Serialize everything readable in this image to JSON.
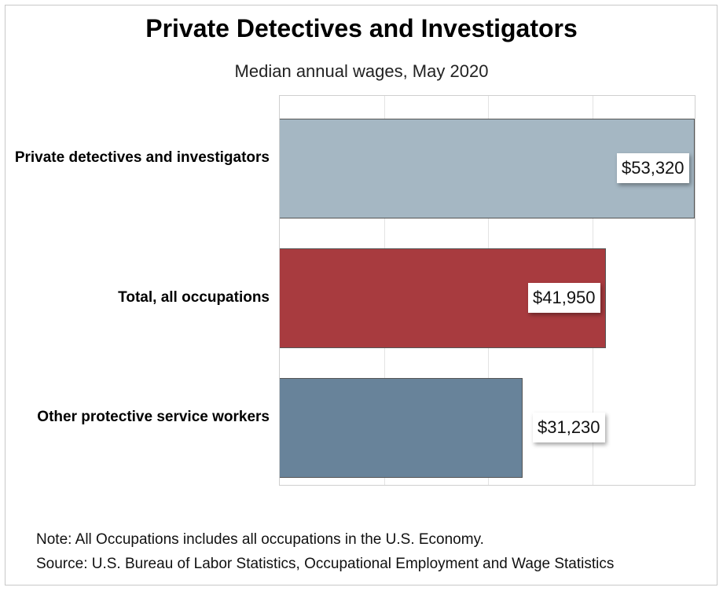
{
  "chart_data": {
    "type": "bar",
    "orientation": "horizontal",
    "title": "Private Detectives and Investigators",
    "subtitle": "Median annual wages, May 2020",
    "categories": [
      "Private detectives and investigators",
      "Total, all occupations",
      "Other protective service workers"
    ],
    "values": [
      53320,
      41950,
      31230
    ],
    "value_labels": [
      "$53,320",
      "$41,950",
      "$31,230"
    ],
    "colors": [
      "#a5b7c3",
      "#a83b3f",
      "#68839a"
    ],
    "xlim": [
      0,
      53320
    ],
    "grid": true,
    "xlabel": "",
    "ylabel": ""
  },
  "notes": {
    "note": "Note: All Occupations includes all occupations in the U.S. Economy.",
    "source": "Source: U.S. Bureau of Labor Statistics, Occupational Employment and Wage Statistics"
  }
}
